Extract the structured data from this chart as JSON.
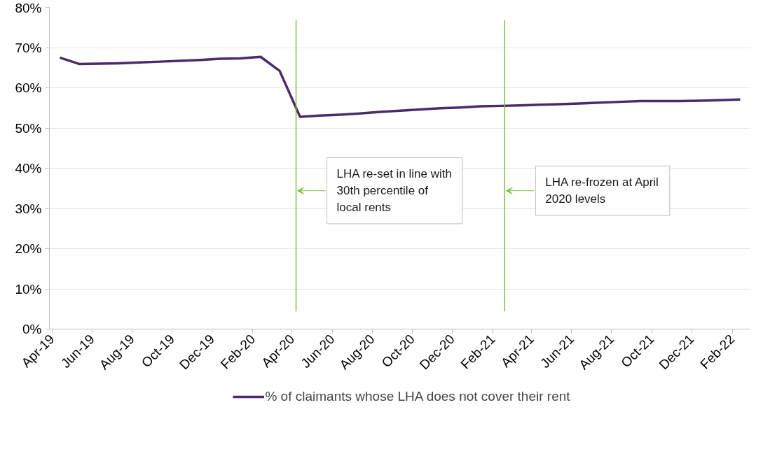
{
  "chart_data": {
    "type": "line",
    "x": [
      "2019-04-13",
      "2019-05-13",
      "2019-06-13",
      "2019-07-13",
      "2019-08-13",
      "2019-09-13",
      "2019-10-13",
      "2019-11-13",
      "2019-12-13",
      "2020-01-13",
      "2020-02-13",
      "2020-03-13",
      "2020-04-13",
      "2020-05-13",
      "2020-06-13",
      "2020-07-13",
      "2020-08-13",
      "2020-09-13",
      "2020-10-13",
      "2020-11-13",
      "2020-12-13",
      "2021-01-13",
      "2021-02-13",
      "2021-03-13",
      "2021-04-13",
      "2021-05-13",
      "2021-06-13",
      "2021-07-13",
      "2021-08-13",
      "2021-09-13",
      "2021-10-13",
      "2021-11-13",
      "2021-12-13",
      "2022-01-13",
      "2022-02-13"
    ],
    "series": [
      {
        "name": "% of claimants whose LHA does not cover their rent",
        "color": "#4b2a6b",
        "values": [
          67.5,
          65.9,
          66.0,
          66.1,
          66.3,
          66.5,
          66.7,
          66.9,
          67.2,
          67.3,
          67.7,
          64.2,
          52.8,
          53.1,
          53.3,
          53.6,
          54.0,
          54.3,
          54.6,
          54.9,
          55.1,
          55.4,
          55.5,
          55.6,
          55.8,
          55.9,
          56.1,
          56.3,
          56.5,
          56.7,
          56.7,
          56.7,
          56.8,
          56.9,
          57.1
        ]
      }
    ],
    "xlim": [
      "2019-03-28",
      "2022-02-28"
    ],
    "xticks": [
      {
        "value": "2019-04",
        "label": "Apr-19"
      },
      {
        "value": "2019-06",
        "label": "Jun-19"
      },
      {
        "value": "2019-08",
        "label": "Aug-19"
      },
      {
        "value": "2019-10",
        "label": "Oct-19"
      },
      {
        "value": "2019-12",
        "label": "Dec-19"
      },
      {
        "value": "2020-02",
        "label": "Feb-20"
      },
      {
        "value": "2020-04",
        "label": "Apr-20"
      },
      {
        "value": "2020-06",
        "label": "Jun-20"
      },
      {
        "value": "2020-08",
        "label": "Aug-20"
      },
      {
        "value": "2020-10",
        "label": "Oct-20"
      },
      {
        "value": "2020-12",
        "label": "Dec-20"
      },
      {
        "value": "2021-02",
        "label": "Feb-21"
      },
      {
        "value": "2021-04",
        "label": "Apr-21"
      },
      {
        "value": "2021-06",
        "label": "Jun-21"
      },
      {
        "value": "2021-08",
        "label": "Aug-21"
      },
      {
        "value": "2021-10",
        "label": "Oct-21"
      },
      {
        "value": "2021-12",
        "label": "Dec-21"
      },
      {
        "value": "2022-02",
        "label": "Feb-22"
      }
    ],
    "ylim": [
      0,
      80
    ],
    "yticks": [
      {
        "value": 0,
        "label": "0%"
      },
      {
        "value": 10,
        "label": "10%"
      },
      {
        "value": 20,
        "label": "20%"
      },
      {
        "value": 30,
        "label": "30%"
      },
      {
        "value": 40,
        "label": "40%"
      },
      {
        "value": 50,
        "label": "50%"
      },
      {
        "value": 60,
        "label": "60%"
      },
      {
        "value": 70,
        "label": "70%"
      },
      {
        "value": 80,
        "label": "80%"
      }
    ],
    "ref_lines": [
      {
        "axis": "x",
        "value": "2020-04-07",
        "label": "LHA re-set in line with\n30th percentile of\nlocal rents",
        "color": "#7cc242"
      },
      {
        "axis": "x",
        "value": "2021-02-19",
        "label": "LHA re-frozen at April\n2020 levels",
        "color": "#7cc242"
      }
    ],
    "grid": "y",
    "legend": "bottom",
    "marker": "none",
    "line_style": "solid"
  }
}
